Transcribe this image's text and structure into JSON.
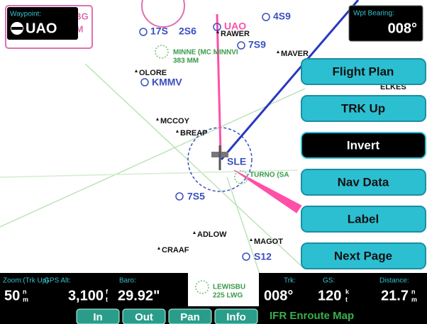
{
  "waypoint": {
    "label": "Waypoint:",
    "value": "UAO",
    "extra": [
      "0 UBG",
      "6NM"
    ]
  },
  "wpt_bearing": {
    "label": "Wpt Bearing:",
    "value": "008°"
  },
  "menu": [
    "Flight Plan",
    "TRK Up",
    "Invert",
    "Nav Data",
    "Label",
    "Next Page"
  ],
  "map_labels": {
    "airports": [
      "UAO",
      "17S",
      "2S6",
      "4S9",
      "7S9",
      "KMMV",
      "SLE",
      "7S5",
      "S12"
    ],
    "intersections": [
      "RAWER",
      "MAVER",
      "OLORE",
      "ELKES",
      "MCCOY",
      "BREAP",
      "ADLOW",
      "MAGOT",
      "CRAAF"
    ],
    "navaids": [
      "MINNE (MC MINNVI",
      "383 MM",
      "TURNO (SA",
      "LEWISBU",
      "225 LWG"
    ]
  },
  "status": {
    "zoom": {
      "label": "Zoom:(Trk Up)",
      "value": "50",
      "unit": [
        "n",
        "m"
      ]
    },
    "gps_alt": {
      "label": "GPS Alt:",
      "value": "3,100",
      "unit": [
        "f",
        "t"
      ]
    },
    "baro": {
      "label": "Baro:",
      "value": "29.92\""
    },
    "trk": {
      "label": "Trk:",
      "value": "008°"
    },
    "gs": {
      "label": "GS:",
      "value": "120",
      "unit": [
        "k",
        "t"
      ]
    },
    "distance": {
      "label": "Distance:",
      "value": "21.7",
      "unit": [
        "n",
        "m"
      ]
    }
  },
  "softkeys": [
    "In",
    "Out",
    "Pan",
    "Info"
  ],
  "mode": "IFR Enroute Map"
}
